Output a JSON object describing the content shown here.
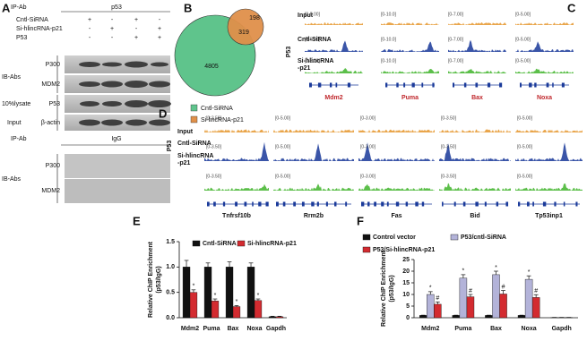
{
  "panels": [
    "A",
    "B",
    "C",
    "D",
    "E",
    "F"
  ],
  "panel_a": {
    "ip_ab": "IP-Ab",
    "ip_target": "p53",
    "rows": [
      {
        "label": "Cntl-SiRNA",
        "signs": [
          "+",
          "-",
          "+",
          "-"
        ]
      },
      {
        "label": "Si-hlincRNA-p21",
        "signs": [
          "-",
          "+",
          "-",
          "+"
        ]
      },
      {
        "label": "P53",
        "signs": [
          "-",
          "-",
          "+",
          "+"
        ]
      }
    ],
    "ib_abs": "IB-Abs",
    "lysate": "10%lysate",
    "input": "Input",
    "blots": [
      "P300",
      "MDM2",
      "P53",
      "β-actin"
    ],
    "ip_ab_2": "IP-Ab",
    "igg": "IgG",
    "ib_abs_2": "IB-Abs",
    "igg_blots": [
      "P300",
      "MDM2"
    ]
  },
  "panel_b": {
    "numbers": [
      "4805",
      "319",
      "198"
    ],
    "legend": [
      {
        "name": "Cntl-SiRNA",
        "color": "#5fc48c"
      },
      {
        "name": "Si-lincRNA-p21",
        "color": "#e0904a"
      }
    ]
  },
  "panel_c": {
    "tracks": [
      "Input",
      "Cntl-SiRNA",
      "Si-hlincRNA\n-p21"
    ],
    "factor": "P53",
    "genes": [
      "Mdm2",
      "Puma",
      "Bax",
      "Noxa"
    ],
    "ranges": [
      [
        "[0-5.00]",
        "[0-10.0]",
        "[0-7.00]",
        "[0-5.00]"
      ],
      [
        "[0-5.00]",
        "[0-10.0]",
        "[0-7.00]",
        "[0-5.00]"
      ],
      [
        "[0-5.00]",
        "[0-10.0]",
        "[0-7.00]",
        "[0-5.00]"
      ]
    ]
  },
  "panel_d": {
    "tracks": [
      "Input",
      "Cntl-SiRNA",
      "Si-hlincRNA\n-p21"
    ],
    "factor": "P53",
    "genes": [
      "Tnfrsf10b",
      "Rrm2b",
      "Fas",
      "Bid",
      "Tp53inp1"
    ],
    "ranges": [
      [
        "[0-3.50]",
        "[0-5.00]",
        "[0-3.00]",
        "[0-3.50]",
        "[0-5.00]"
      ],
      [
        "[0-3.50]",
        "[0-5.00]",
        "[0-3.00]",
        "[0-3.50]",
        "[0-5.00]"
      ],
      [
        "[0-3.50]",
        "[0-5.00]",
        "[0-3.00]",
        "[0-3.50]",
        "[0-5.00]"
      ]
    ]
  },
  "chart_data": [
    {
      "type": "bar",
      "y_label": [
        "Relative ChIP Enrichment",
        "(p53/IgG)"
      ],
      "categories": [
        "Mdm2",
        "Puma",
        "Bax",
        "Noxa",
        "Gapdh"
      ],
      "series": [
        {
          "name": "Cntl-SiRNA",
          "color": "#111111",
          "values": [
            1.0,
            1.0,
            1.0,
            1.0,
            0.02
          ],
          "errors": [
            0.13,
            0.08,
            0.1,
            0.08,
            0.01
          ],
          "significance": [
            null,
            null,
            null,
            null,
            null
          ]
        },
        {
          "name": "Si-hlincRNA-p21",
          "color": "#d32b30",
          "values": [
            0.5,
            0.33,
            0.22,
            0.34,
            0.02
          ],
          "errors": [
            0.05,
            0.04,
            0.02,
            0.03,
            0.01
          ],
          "significance": [
            "*",
            "*",
            "*",
            "*",
            null
          ]
        }
      ],
      "ylim": [
        0,
        1.5
      ],
      "yticks": [
        {
          "value": 0,
          "label": "0.0"
        },
        {
          "value": 0.5,
          "label": "0.5"
        },
        {
          "value": 1,
          "label": "1.0"
        },
        {
          "value": 1.5,
          "label": "1.5"
        }
      ]
    },
    {
      "type": "bar",
      "y_label": [
        "Relative ChIP Enrichment",
        "(p53/IgG)"
      ],
      "categories": [
        "Mdm2",
        "Puma",
        "Bax",
        "Noxa",
        "Gapdh"
      ],
      "series": [
        {
          "name": "Control vector",
          "color": "#111111",
          "values": [
            1,
            1,
            1,
            1,
            0.1
          ],
          "errors": [
            0.1,
            0.1,
            0.1,
            0.1,
            0.05
          ],
          "significance": [
            null,
            null,
            null,
            null,
            null
          ]
        },
        {
          "name": "P53/cntl-SiRNA",
          "color": "#b3b3d9",
          "values": [
            10,
            17,
            18.5,
            16.5,
            0.1
          ],
          "errors": [
            1.2,
            1.5,
            1.5,
            1.5,
            0.05
          ],
          "significance": [
            "*",
            "*",
            "*",
            "*",
            null
          ]
        },
        {
          "name": "P53/Si-hlincRNA-p21",
          "color": "#d32b30",
          "values": [
            5.8,
            9,
            10.2,
            8.7,
            0.1
          ],
          "errors": [
            1.0,
            1.0,
            1.5,
            1.2,
            0.05
          ],
          "significance": [
            "#",
            "#",
            "#",
            "#",
            null
          ]
        }
      ],
      "ylim": [
        0,
        25
      ],
      "yticks": [
        0,
        5,
        10,
        15,
        20,
        25
      ]
    }
  ]
}
